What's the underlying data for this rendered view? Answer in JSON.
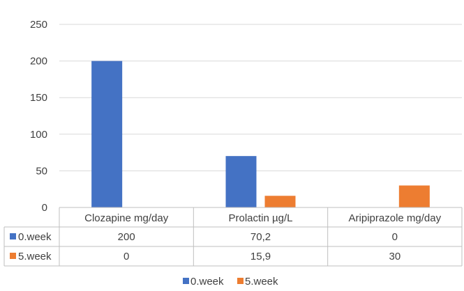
{
  "chart_data": {
    "type": "bar",
    "categories": [
      "Clozapine mg/day",
      "Prolactin µg/L",
      "Aripiprazole mg/day"
    ],
    "series": [
      {
        "name": "0.week",
        "values": [
          200,
          70.2,
          0
        ],
        "display": [
          "200",
          "70,2",
          "0"
        ],
        "color": "#4472c4"
      },
      {
        "name": "5.week",
        "values": [
          0,
          15.9,
          30
        ],
        "display": [
          "0",
          "15,9",
          "30"
        ],
        "color": "#ed7d31"
      }
    ],
    "ylim": [
      0,
      250
    ],
    "yticks": [
      "0",
      "50",
      "100",
      "150",
      "200",
      "250"
    ],
    "grid": true,
    "data_table": true,
    "legend": "bottom-center"
  }
}
